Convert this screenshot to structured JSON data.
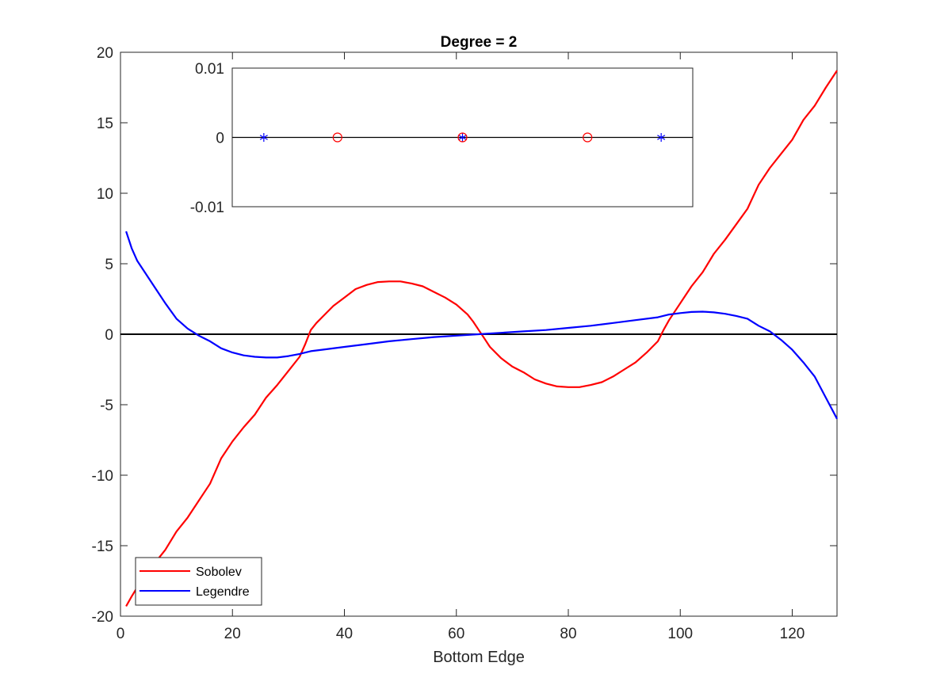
{
  "chart_data": [
    {
      "type": "line",
      "title": "Degree = 2",
      "xlabel": "Bottom Edge",
      "ylabel": "",
      "xlim": [
        0,
        128
      ],
      "ylim": [
        -20,
        20
      ],
      "xticks": [
        0,
        20,
        40,
        60,
        80,
        100,
        120
      ],
      "yticks": [
        -20,
        -15,
        -10,
        -5,
        0,
        5,
        10,
        15,
        20
      ],
      "grid": false,
      "legend": "bottom-left",
      "zero_line": {
        "y": 0,
        "color": "#000000"
      },
      "series": [
        {
          "name": "Sobolev",
          "color": "#ff0000",
          "x": [
            1,
            2,
            4,
            6,
            8,
            10,
            12,
            14,
            16,
            18,
            20,
            22,
            24,
            26,
            28,
            30,
            32,
            33,
            34,
            35,
            36,
            38,
            40,
            42,
            44,
            46,
            48,
            50,
            52,
            54,
            56,
            58,
            60,
            62,
            63,
            64,
            65,
            66,
            68,
            70,
            72,
            74,
            76,
            78,
            80,
            82,
            84,
            86,
            88,
            90,
            92,
            94,
            96,
            97,
            98,
            100,
            102,
            104,
            106,
            108,
            110,
            112,
            114,
            116,
            118,
            120,
            122,
            124,
            126,
            128
          ],
          "values": [
            -19.3,
            -18.6,
            -17.3,
            -16.3,
            -15.3,
            -14.0,
            -13.0,
            -11.8,
            -10.6,
            -8.8,
            -7.6,
            -6.6,
            -5.7,
            -4.5,
            -3.6,
            -2.6,
            -1.6,
            -0.7,
            0.3,
            0.8,
            1.2,
            2.0,
            2.6,
            3.2,
            3.5,
            3.7,
            3.75,
            3.75,
            3.6,
            3.4,
            3.0,
            2.6,
            2.1,
            1.4,
            0.9,
            0.3,
            -0.3,
            -0.9,
            -1.7,
            -2.3,
            -2.7,
            -3.2,
            -3.5,
            -3.7,
            -3.75,
            -3.75,
            -3.6,
            -3.4,
            -3.0,
            -2.5,
            -2.0,
            -1.3,
            -0.5,
            0.3,
            1.0,
            2.2,
            3.4,
            4.4,
            5.7,
            6.7,
            7.8,
            8.9,
            10.6,
            11.8,
            12.8,
            13.8,
            15.2,
            16.2,
            17.5,
            18.7
          ]
        },
        {
          "name": "Legendre",
          "color": "#0000ff",
          "x": [
            1,
            2,
            3,
            4,
            6,
            8,
            10,
            12,
            14,
            16,
            18,
            20,
            22,
            24,
            26,
            28,
            30,
            32,
            34,
            36,
            40,
            44,
            48,
            52,
            56,
            60,
            64,
            68,
            72,
            76,
            80,
            84,
            88,
            92,
            96,
            98,
            100,
            102,
            104,
            106,
            108,
            110,
            112,
            114,
            116,
            118,
            120,
            122,
            124,
            126,
            128
          ],
          "values": [
            7.3,
            6.1,
            5.2,
            4.6,
            3.4,
            2.2,
            1.1,
            0.4,
            -0.1,
            -0.5,
            -1.0,
            -1.3,
            -1.5,
            -1.6,
            -1.65,
            -1.65,
            -1.55,
            -1.4,
            -1.2,
            -1.1,
            -0.9,
            -0.7,
            -0.5,
            -0.35,
            -0.2,
            -0.1,
            0.0,
            0.1,
            0.2,
            0.3,
            0.45,
            0.6,
            0.8,
            1.0,
            1.2,
            1.4,
            1.5,
            1.58,
            1.6,
            1.55,
            1.45,
            1.3,
            1.1,
            0.6,
            0.2,
            -0.4,
            -1.1,
            -2.0,
            -3.0,
            -4.5,
            -6.0
          ]
        }
      ]
    },
    {
      "type": "scatter",
      "title": "",
      "xlabel": "",
      "ylabel": "",
      "xlim": [
        -1.05,
        1.05
      ],
      "ylim": [
        -0.01,
        0.01
      ],
      "yticks": [
        -0.01,
        0,
        0.01
      ],
      "ytick_labels": [
        "-0.01",
        "0",
        "0.01"
      ],
      "xticks": [],
      "grid": false,
      "zero_line": {
        "y": 0,
        "color": "#000000"
      },
      "series": [
        {
          "name": "",
          "marker": "asterisk",
          "color": "#0000ff",
          "x": [
            -0.906,
            0.0,
            0.906
          ],
          "values": [
            0,
            0,
            0
          ]
        },
        {
          "name": "",
          "marker": "circle",
          "color": "#ff0000",
          "x": [
            -0.57,
            0.0,
            0.57
          ],
          "values": [
            0,
            0,
            0
          ]
        }
      ]
    }
  ]
}
